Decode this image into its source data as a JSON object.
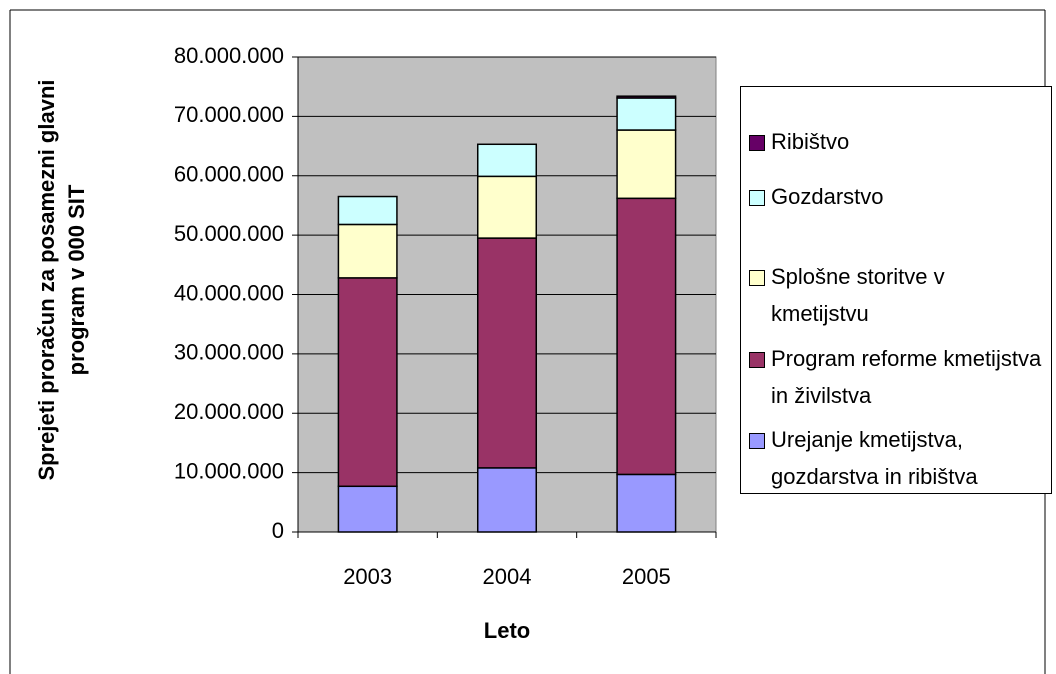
{
  "chart_data": {
    "type": "stacked_bar",
    "x_label": "Leto",
    "y_label": "Sprejeti proračun za posamezni glavni program v 000 SIT",
    "categories": [
      "2003",
      "2004",
      "2005"
    ],
    "series": [
      {
        "name": "Urejanje kmetijstva, gozdarstva in ribištva",
        "color": "#9999ff",
        "values": [
          7700000,
          10800000,
          9700000
        ]
      },
      {
        "name": "Program reforme kmetijstva in živilstva",
        "color": "#993366",
        "values": [
          35100000,
          38700000,
          46500000
        ]
      },
      {
        "name": "Splošne storitve v kmetijstvu",
        "color": "#ffffcc",
        "values": [
          9000000,
          10400000,
          11500000
        ]
      },
      {
        "name": "Gozdarstvo",
        "color": "#ccffff",
        "values": [
          4700000,
          5400000,
          5400000
        ]
      },
      {
        "name": "Ribištvo",
        "color": "#660066",
        "values": [
          0,
          0,
          300000
        ]
      }
    ],
    "ylim": [
      0,
      80000000
    ],
    "yticks": [
      0,
      {
        "value": 10000000,
        "label": "10.000.000"
      },
      {
        "value": 20000000,
        "label": "20.000.000"
      },
      {
        "value": 30000000,
        "label": "30.000.000"
      },
      {
        "value": 40000000,
        "label": "40.000.000"
      },
      {
        "value": 50000000,
        "label": "50.000.000"
      },
      {
        "value": 60000000,
        "label": "60.000.000"
      },
      {
        "value": 70000000,
        "label": "70.000.000"
      },
      {
        "value": 80000000,
        "label": "80.000.000"
      }
    ],
    "grid": true,
    "plot_background": "#c0c0c0",
    "legend": "right"
  }
}
